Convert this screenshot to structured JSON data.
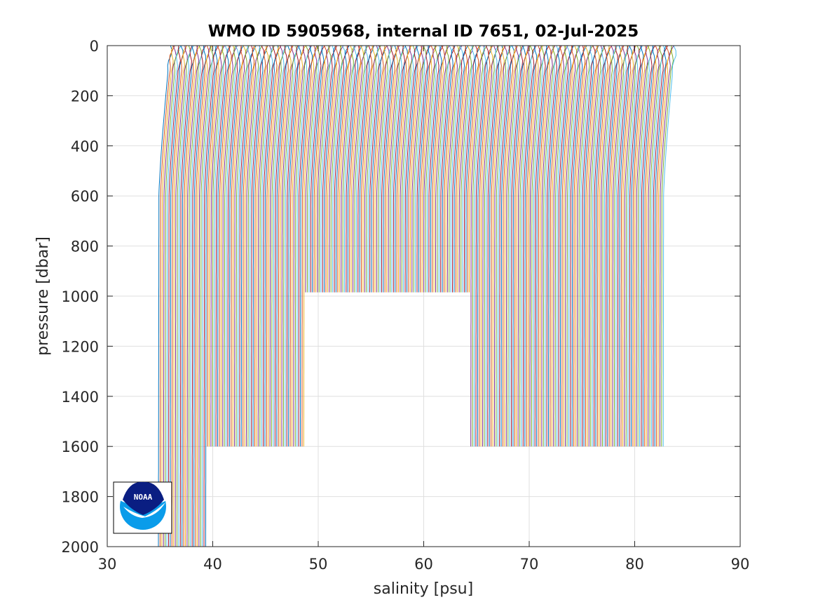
{
  "chart_data": {
    "type": "line",
    "title": "WMO ID 5905968, internal ID 7651, 02-Jul-2025",
    "xlabel": "salinity [psu]",
    "ylabel": "pressure [dbar]",
    "xlim": [
      30,
      90
    ],
    "ylim": [
      0,
      2000
    ],
    "y_reversed": true,
    "grid": true,
    "legend": "none",
    "xticks": [
      "30",
      "40",
      "50",
      "60",
      "70",
      "80",
      "90"
    ],
    "yticks": [
      "0",
      "200",
      "400",
      "600",
      "800",
      "1000",
      "1200",
      "1400",
      "1600",
      "1800",
      "2000"
    ],
    "plot_style": "waterfall of salinity profiles, each successive profile offset ~0.16 psu to the right",
    "series_count": 300,
    "profile_start_salinity": 34.9,
    "profile_offset_psu": 0.16,
    "surface_salinity_shift": 1.1,
    "thermocline_depth_dbar": 600,
    "profile_max_pressure_dbar": [
      {
        "from": 0,
        "to": 28,
        "max_pressure": 2000
      },
      {
        "from": 29,
        "to": 45,
        "max_pressure": 1600
      },
      {
        "from": 46,
        "to": 86,
        "max_pressure": 1600
      },
      {
        "from": 87,
        "to": 160,
        "max_pressure": 985
      },
      {
        "from": 161,
        "to": 184,
        "max_pressure": 985
      },
      {
        "from": 185,
        "to": 191,
        "max_pressure": 1600
      },
      {
        "from": 192,
        "to": 299,
        "max_pressure": 1600
      }
    ],
    "colors": [
      "#0072bd",
      "#d95319",
      "#edb120",
      "#7e2f8e",
      "#77ac30",
      "#4dbeee",
      "#a2142f"
    ]
  },
  "logo": {
    "text": "NOAA"
  }
}
